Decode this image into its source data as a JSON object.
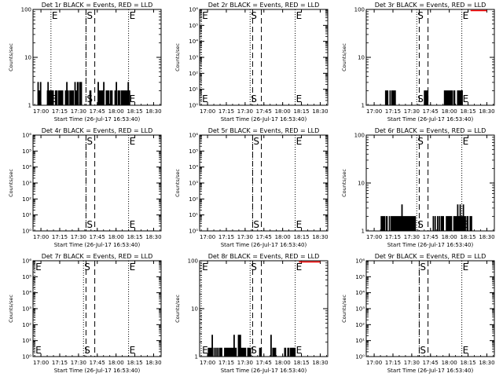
{
  "chart_data": [
    {
      "type": "line",
      "title": "Det 1r BLACK = Events, RED = LLD",
      "ylabel": "Counts/sec",
      "xlabel": "Start Time (26-Jul-17 16:53:40)",
      "xlim": [
        "16:53:40",
        "18:36:00"
      ],
      "x_ticks": [
        "17:00",
        "17:15",
        "17:30",
        "17:45",
        "18:00",
        "18:15",
        "18:30"
      ],
      "yscale": "log",
      "ylim": [
        1,
        100
      ],
      "y_ticks": [
        "1",
        "10",
        "100"
      ],
      "markers": [
        {
          "label": "E",
          "time": "17:08"
        },
        {
          "label": "S",
          "time": "17:36"
        },
        {
          "label": "E",
          "time": "18:10"
        }
      ],
      "dashed_lines": [
        "17:36",
        "17:43"
      ],
      "events_level": 2,
      "events_spikes": 3,
      "events_visible": true,
      "events_segments": [
        [
          "16:57",
          "17:01"
        ],
        [
          "17:05",
          "17:33"
        ],
        [
          "17:39",
          "17:40"
        ],
        [
          "17:43",
          "18:14"
        ]
      ],
      "lld_segment": null
    },
    {
      "type": "line",
      "title": "Det 2r BLACK = Events, RED = LLD",
      "ylabel": "Counts/sec",
      "xlabel": "Start Time (26-Jul-17 16:53:40)",
      "xlim": [
        "16:53:40",
        "18:36:00"
      ],
      "x_ticks": [
        "17:00",
        "17:15",
        "17:30",
        "17:45",
        "18:00",
        "18:15",
        "18:30"
      ],
      "yscale": "log",
      "ylim": [
        1,
        1000000
      ],
      "y_ticks": [
        "10⁰",
        "10¹",
        "10²",
        "10³",
        "10⁴",
        "10⁵",
        "10⁶"
      ],
      "markers": [
        {
          "label": "E",
          "time": "16:55"
        },
        {
          "label": "S",
          "time": "17:34"
        },
        {
          "label": "E",
          "time": "18:10"
        }
      ],
      "dashed_lines": [
        "17:36",
        "17:43"
      ],
      "events_level": 0,
      "events_spikes": 0,
      "events_visible": false,
      "events_segments": [],
      "lld_segment": null
    },
    {
      "type": "line",
      "title": "Det 3r BLACK = Events, RED = LLD",
      "ylabel": "Counts/sec",
      "xlabel": "Start Time (26-Jul-17 16:53:40)",
      "xlim": [
        "16:53:40",
        "18:36:00"
      ],
      "x_ticks": [
        "17:00",
        "17:15",
        "17:30",
        "17:45",
        "18:00",
        "18:15",
        "18:30"
      ],
      "yscale": "log",
      "ylim": [
        1,
        100
      ],
      "y_ticks": [
        "1",
        "10",
        "100"
      ],
      "markers": [
        {
          "label": "S",
          "time": "17:34"
        },
        {
          "label": "E",
          "time": "18:10"
        }
      ],
      "dashed_lines": [
        "17:36",
        "17:43"
      ],
      "events_level": 2,
      "events_spikes": 2,
      "events_visible": true,
      "events_segments": [
        [
          "17:09",
          "17:18"
        ],
        [
          "17:25",
          "17:26"
        ],
        [
          "17:40",
          "17:43"
        ],
        [
          "17:56",
          "18:12"
        ]
      ],
      "lld_segment": [
        "18:17",
        "18:30"
      ]
    },
    {
      "type": "line",
      "title": "Det 4r BLACK = Events, RED = LLD",
      "ylabel": "Counts/sec",
      "xlabel": "Start Time (26-Jul-17 16:53:40)",
      "xlim": [
        "16:53:40",
        "18:36:00"
      ],
      "x_ticks": [
        "17:00",
        "17:15",
        "17:30",
        "17:45",
        "18:00",
        "18:15",
        "18:30"
      ],
      "yscale": "log",
      "ylim": [
        1,
        1000000
      ],
      "y_ticks": [
        "10⁰",
        "10¹",
        "10²",
        "10³",
        "10⁴",
        "10⁵",
        "10⁶"
      ],
      "markers": [
        {
          "label": "S",
          "time": "17:36"
        },
        {
          "label": "E",
          "time": "18:10"
        }
      ],
      "dashed_lines": [
        "17:36",
        "17:43"
      ],
      "events_level": 0,
      "events_spikes": 0,
      "events_visible": false,
      "events_segments": [],
      "lld_segment": null
    },
    {
      "type": "line",
      "title": "Det 5r BLACK = Events, RED = LLD",
      "ylabel": "Counts/sec",
      "xlabel": "Start Time (26-Jul-17 16:53:40)",
      "xlim": [
        "16:53:40",
        "18:36:00"
      ],
      "x_ticks": [
        "17:00",
        "17:15",
        "17:30",
        "17:45",
        "18:00",
        "18:15",
        "18:30"
      ],
      "yscale": "log",
      "ylim": [
        1,
        1000000
      ],
      "y_ticks": [
        "10⁰",
        "10¹",
        "10²",
        "10³",
        "10⁴",
        "10⁵",
        "10⁶"
      ],
      "markers": [
        {
          "label": "S",
          "time": "17:36"
        },
        {
          "label": "E",
          "time": "18:10"
        }
      ],
      "dashed_lines": [
        "17:36",
        "17:43"
      ],
      "events_level": 0,
      "events_spikes": 0,
      "events_visible": false,
      "events_segments": [],
      "lld_segment": null
    },
    {
      "type": "line",
      "title": "Det 6r BLACK = Events, RED = LLD",
      "ylabel": "Counts/sec",
      "xlabel": "Start Time (26-Jul-17 16:53:40)",
      "xlim": [
        "16:53:40",
        "18:36:00"
      ],
      "x_ticks": [
        "17:00",
        "17:15",
        "17:30",
        "17:45",
        "18:00",
        "18:15",
        "18:30"
      ],
      "yscale": "log",
      "ylim": [
        1,
        100
      ],
      "y_ticks": [
        "1",
        "10",
        "100"
      ],
      "markers": [
        {
          "label": "S",
          "time": "17:34"
        },
        {
          "label": "E",
          "time": "18:10"
        }
      ],
      "dashed_lines": [
        "17:36",
        "17:43"
      ],
      "events_level": 2,
      "events_spikes": 3.5,
      "events_visible": true,
      "events_segments": [
        [
          "17:05",
          "17:33"
        ],
        [
          "17:47",
          "18:18"
        ]
      ],
      "lld_segment": null
    },
    {
      "type": "line",
      "title": "Det 7r BLACK = Events, RED = LLD",
      "ylabel": "Counts/sec",
      "xlabel": "Start Time (26-Jul-17 16:53:40)",
      "xlim": [
        "16:53:40",
        "18:36:00"
      ],
      "x_ticks": [
        "17:00",
        "17:15",
        "17:30",
        "17:45",
        "18:00",
        "18:15",
        "18:30"
      ],
      "yscale": "log",
      "ylim": [
        1,
        1000000
      ],
      "y_ticks": [
        "10⁰",
        "10¹",
        "10²",
        "10³",
        "10⁴",
        "10⁵",
        "10⁶"
      ],
      "markers": [
        {
          "label": "E",
          "time": "16:55"
        },
        {
          "label": "S",
          "time": "17:34"
        },
        {
          "label": "E",
          "time": "18:10"
        }
      ],
      "dashed_lines": [
        "17:36",
        "17:43"
      ],
      "events_level": 0,
      "events_spikes": 0,
      "events_visible": false,
      "events_segments": [],
      "lld_segment": null
    },
    {
      "type": "line",
      "title": "Det 8r BLACK = Events, RED = LLD",
      "ylabel": "Counts/sec",
      "xlabel": "Start Time (26-Jul-17 16:53:40)",
      "xlim": [
        "16:53:40",
        "18:36:00"
      ],
      "x_ticks": [
        "17:00",
        "17:15",
        "17:30",
        "17:45",
        "18:00",
        "18:15",
        "18:30"
      ],
      "yscale": "log",
      "ylim": [
        1,
        100
      ],
      "y_ticks": [
        "1",
        "10",
        "100"
      ],
      "markers": [
        {
          "label": "E",
          "time": "16:55"
        },
        {
          "label": "S",
          "time": "17:34"
        },
        {
          "label": "E",
          "time": "18:10"
        }
      ],
      "dashed_lines": [
        "17:36",
        "17:43"
      ],
      "events_level": 1.5,
      "events_spikes": 2.8,
      "events_visible": true,
      "events_segments": [
        [
          "17:00",
          "17:35"
        ],
        [
          "17:40",
          "17:43"
        ],
        [
          "17:50",
          "17:55"
        ],
        [
          "18:01",
          "18:10"
        ]
      ],
      "lld_segment": [
        "18:13",
        "18:30"
      ]
    },
    {
      "type": "line",
      "title": "Det 9r BLACK = Events, RED = LLD",
      "ylabel": "Counts/sec",
      "xlabel": "Start Time (26-Jul-17 16:53:40)",
      "xlim": [
        "16:53:40",
        "18:36:00"
      ],
      "x_ticks": [
        "17:00",
        "17:15",
        "17:30",
        "17:45",
        "18:00",
        "18:15",
        "18:30"
      ],
      "yscale": "log",
      "ylim": [
        1,
        1000000
      ],
      "y_ticks": [
        "10⁰",
        "10¹",
        "10²",
        "10³",
        "10⁴",
        "10⁵",
        "10⁶"
      ],
      "markers": [
        {
          "label": "S",
          "time": "17:36"
        },
        {
          "label": "E",
          "time": "18:10"
        }
      ],
      "dashed_lines": [
        "17:36",
        "17:43"
      ],
      "events_level": 0,
      "events_spikes": 0,
      "events_visible": false,
      "events_segments": [],
      "lld_segment": null
    }
  ],
  "colors": {
    "events": "#000000",
    "lld": "#ff0000",
    "axis": "#000000",
    "background": "#ffffff"
  }
}
